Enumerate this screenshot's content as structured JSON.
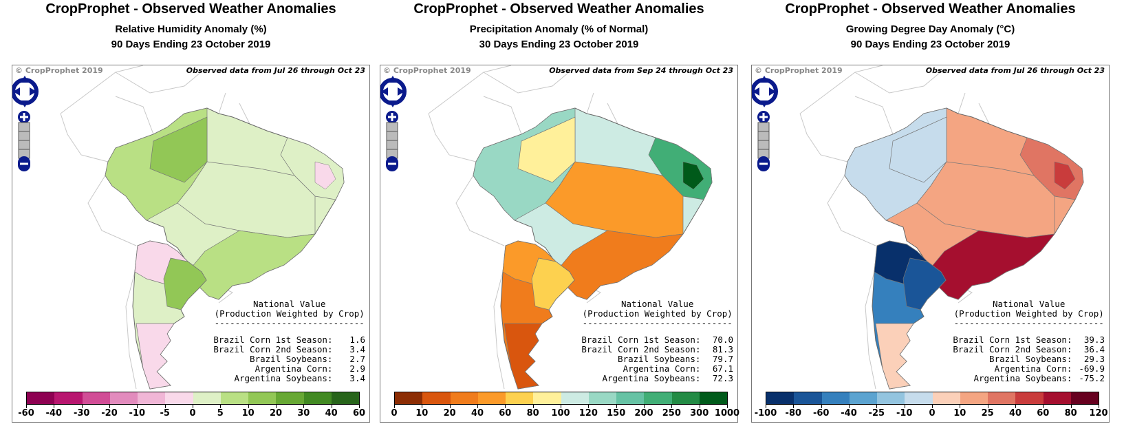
{
  "copyright": "© CropProphet 2019",
  "legend_header": [
    "National Value",
    "(Production Weighted by Crop)",
    "-----------------------------"
  ],
  "crop_labels": [
    "Brazil Corn 1st Season:",
    "Brazil Corn 2nd Season:",
    "Brazil Soybeans:",
    "Argentina Corn:",
    "Argentina Soybeans:"
  ],
  "panels": [
    {
      "title": "CropProphet - Observed Weather Anomalies",
      "subtitle": "Relative Humidity Anomaly (%)",
      "period": "90 Days Ending 23 October 2019",
      "observed": "Observed data from Jul 26 through Oct 23",
      "values": [
        "1.6",
        "3.4",
        "2.7",
        "2.9",
        "3.4"
      ],
      "colorbar_colors": [
        "#8e0152",
        "#b8166f",
        "#d14d96",
        "#e28bbd",
        "#f0b6d6",
        "#f9d9ea",
        "#def0c6",
        "#b9e084",
        "#92c756",
        "#67a834",
        "#418922",
        "#27641a"
      ],
      "colorbar_ticks": [
        "-60",
        "-40",
        "-30",
        "-20",
        "-10",
        "-5",
        "0",
        "5",
        "10",
        "20",
        "30",
        "40",
        "60"
      ],
      "map_colors": {
        "brazil_base": "#def0c6",
        "amazon": "#b9e084",
        "west": "#92c756",
        "northeast": "#def0c6",
        "ne_spots": "#f9d9ea",
        "south": "#b9e084",
        "center": "#def0c6",
        "arg_north": "#f9d9ea",
        "arg_mid": "#def0c6",
        "arg_south": "#f9d9ea",
        "arg_east": "#92c756"
      }
    },
    {
      "title": "CropProphet - Observed Weather Anomalies",
      "subtitle": "Precipitation Anomaly (% of Normal)",
      "period": "30 Days Ending 23 October 2019",
      "observed": "Observed data from Sep 24 through Oct 23",
      "values": [
        "70.0",
        "81.3",
        "79.7",
        "67.1",
        "72.3"
      ],
      "colorbar_colors": [
        "#8c2d04",
        "#d9560e",
        "#f07c1c",
        "#fb9a29",
        "#fdd14f",
        "#fff09a",
        "#cdebe3",
        "#99d8c4",
        "#66c2a4",
        "#41ae76",
        "#238b45",
        "#005a1a"
      ],
      "colorbar_ticks": [
        "0",
        "10",
        "20",
        "40",
        "60",
        "80",
        "100",
        "120",
        "150",
        "200",
        "250",
        "300",
        "1000"
      ],
      "map_colors": {
        "brazil_base": "#cdebe3",
        "amazon": "#99d8c4",
        "west": "#fff09a",
        "northeast": "#41ae76",
        "ne_spots": "#005a1a",
        "south": "#f07c1c",
        "center": "#fb9a29",
        "arg_north": "#fb9a29",
        "arg_mid": "#f07c1c",
        "arg_south": "#d9560e",
        "arg_east": "#fdd14f"
      }
    },
    {
      "title": "CropProphet - Observed Weather Anomalies",
      "subtitle": "Growing Degree Day Anomaly (°C)",
      "period": "90 Days Ending 23 October 2019",
      "observed": "Observed data from Jul 26 through Oct 23",
      "values": [
        "39.3",
        "36.4",
        "29.3",
        "-69.9",
        "-75.2"
      ],
      "colorbar_colors": [
        "#08306b",
        "#1a5598",
        "#3580bd",
        "#5ba3d0",
        "#93c4df",
        "#c6dcec",
        "#fbd0b9",
        "#f4a582",
        "#e07563",
        "#c93c3c",
        "#a50f2f",
        "#67001f"
      ],
      "colorbar_ticks": [
        "-100",
        "-80",
        "-60",
        "-40",
        "-25",
        "-10",
        "0",
        "10",
        "25",
        "40",
        "60",
        "80",
        "120"
      ],
      "map_colors": {
        "brazil_base": "#f4a582",
        "amazon": "#c6dcec",
        "west": "#c6dcec",
        "northeast": "#e07563",
        "ne_spots": "#c93c3c",
        "south": "#a50f2f",
        "center": "#f4a582",
        "arg_north": "#08306b",
        "arg_mid": "#3580bd",
        "arg_south": "#fbd0b9",
        "arg_east": "#1a5598"
      }
    }
  ]
}
